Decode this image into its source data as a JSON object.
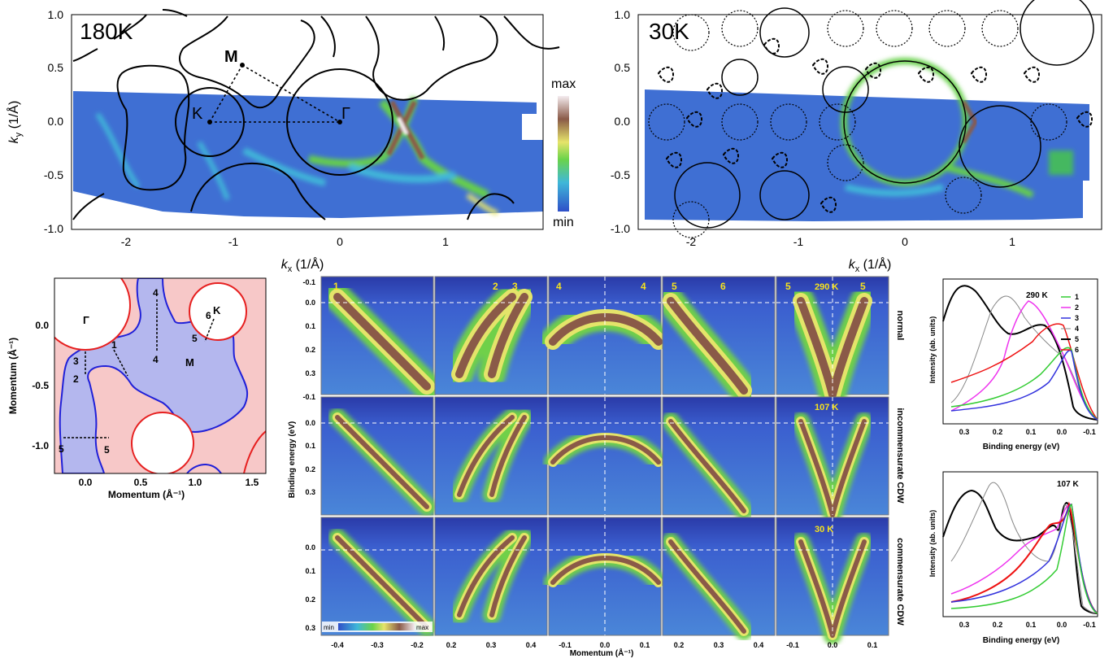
{
  "colors": {
    "blue_map": "#2f58c8",
    "cyan": "#3fb7d9",
    "green": "#66d04a",
    "yellow": "#e4e46a",
    "brown": "#8a5a48",
    "white_peak": "#f4ecef",
    "region_red": "#f7c8c8",
    "region_blue": "#b4b7ee",
    "edge_red": "#e62020",
    "edge_blue": "#2020d8",
    "label_yellow": "#f6e21c"
  },
  "map_left": {
    "temperature": "180K",
    "point_labels": {
      "M": "M",
      "K": "K",
      "Gamma": "Γ"
    },
    "yticks": [
      "1.0",
      "0.5",
      "0.0",
      "-0.5",
      "-1.0"
    ],
    "xticks": [
      "-2",
      "-1",
      "0",
      "1"
    ],
    "ylabel": "k",
    "ylabel_sub": "y",
    "ylabel_unit": " (1/Å)",
    "xlabel": "k",
    "xlabel_sub": "x",
    "xlabel_unit": " (1/Å)",
    "colorbar": {
      "max": "max",
      "min": "min"
    }
  },
  "map_right": {
    "temperature": "30K",
    "yticks": [
      "1.0",
      "0.5",
      "0.0",
      "-0.5",
      "-1.0"
    ],
    "xticks": [
      "-2",
      "-1",
      "0",
      "1"
    ],
    "xlabel": "k",
    "xlabel_sub": "x",
    "xlabel_unit": " (1/Å)"
  },
  "schematic": {
    "yticks": [
      "0.0",
      "-0.5",
      "-1.0"
    ],
    "xticks": [
      "0.0",
      "0.5",
      "1.0",
      "1.5"
    ],
    "ylabel": "Momentum (Å⁻¹)",
    "xlabel": "Momentum (Å⁻¹)",
    "points": {
      "Gamma": "Γ",
      "K": "K",
      "M": "M"
    },
    "cut_labels": [
      "1",
      "2",
      "3",
      "4",
      "4",
      "5",
      "5",
      "6",
      "5"
    ]
  },
  "arpes_grid": {
    "row_labels": [
      "normal",
      "incommensurate CDW",
      "commensurate CDW"
    ],
    "temperatures": [
      "290 K",
      "107 K",
      "30 K"
    ],
    "cut_labels_top": [
      "1",
      "2",
      "3",
      "4",
      "4",
      "5",
      "6",
      "5",
      "5"
    ],
    "yticks": [
      "-0.1",
      "0.0",
      "0.1",
      "0.2",
      "0.3"
    ],
    "yticks_bottom": [
      "0.0",
      "0.1",
      "0.2",
      "0.3"
    ],
    "ylabel": "Binding energy (eV)",
    "xlabel": "Momentum (Å⁻¹)",
    "col_xticks": [
      [
        "-0.4",
        "-0.3",
        "-0.2"
      ],
      [
        "0.2",
        "0.3",
        "0.4"
      ],
      [
        "-0.1",
        "0.0",
        "0.1"
      ],
      [
        "0.2",
        "0.3",
        "0.4"
      ],
      [
        "-0.1",
        "0.0",
        "0.1"
      ]
    ],
    "colorbar": {
      "min": "min",
      "max": "max"
    }
  },
  "edc_290": {
    "temperature": "290 K",
    "legend": [
      "1",
      "2",
      "3",
      "4",
      "5",
      "6"
    ],
    "legend_colors": [
      "#33cc33",
      "#ee33ee",
      "#3333dd",
      "#888888",
      "#000000",
      "#ee1111"
    ],
    "ylabel": "Intensity (ab. units)",
    "xlabel": "Binding energy (eV)",
    "xticks": [
      "0.3",
      "0.2",
      "0.1",
      "0.0",
      "-0.1"
    ]
  },
  "edc_107": {
    "temperature": "107 K",
    "ylabel": "Intensity (ab. units)",
    "xlabel": "Binding energy (eV)",
    "xticks": [
      "0.3",
      "0.2",
      "0.1",
      "0.0",
      "-0.1"
    ]
  }
}
